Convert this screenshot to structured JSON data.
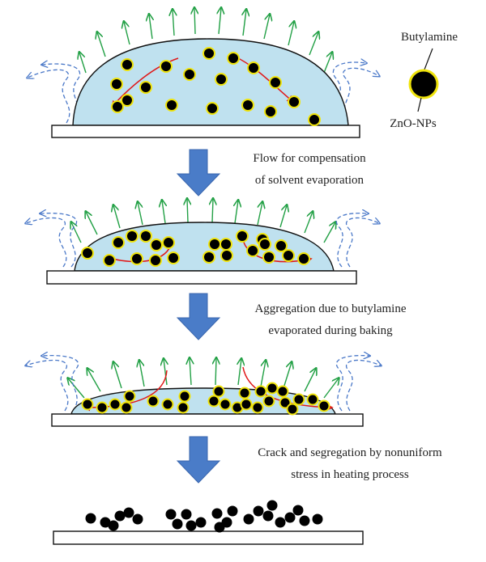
{
  "legend": {
    "shell_label": "Butylamine",
    "core_label": "ZnO-NPs"
  },
  "steps": [
    {
      "line1": "Flow for compensation",
      "line2": "of solvent evaporation"
    },
    {
      "line1": "Aggregation due to butylamine",
      "line2": "evaporated during baking"
    },
    {
      "line1": "Crack and segregation by nonuniform",
      "line2": "stress in heating process"
    }
  ],
  "colors": {
    "droplet_fill": "#bfe1ef",
    "particle_core": "#000000",
    "particle_shell": "#f0e40c",
    "vapor_arrow": "#22a045",
    "flow_arrow": "#e01818",
    "dashed_wave": "#4a78c8",
    "down_arrow": "#4a7cc8"
  },
  "icons": [
    "up-arrow-icon",
    "flow-arrow-icon",
    "dashed-wave-arrow-icon",
    "down-arrow-icon",
    "nanoparticle-icon"
  ]
}
